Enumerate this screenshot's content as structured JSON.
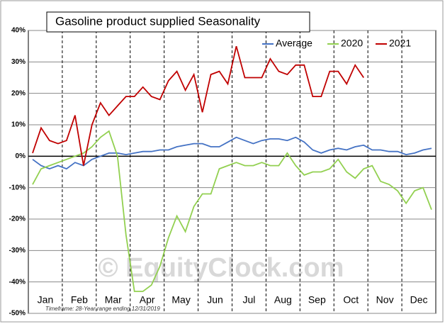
{
  "chart_data": {
    "type": "line",
    "title": "Gasoline product supplied Seasonality",
    "months": [
      "Jan",
      "Feb",
      "Mar",
      "Apr",
      "May",
      "Jun",
      "Jul",
      "Aug",
      "Sep",
      "Oct",
      "Nov",
      "Dec"
    ],
    "series": [
      {
        "name": "Average",
        "color": "#4472c4",
        "values": [
          -1,
          -3,
          -4,
          -3,
          -4,
          -2,
          -3,
          -1,
          0,
          1,
          1,
          0.5,
          1,
          1.5,
          1.5,
          2,
          2,
          3,
          3.5,
          4,
          4,
          3,
          3,
          4.5,
          6,
          5,
          4,
          5,
          5.5,
          5.5,
          5,
          6,
          4.5,
          2,
          1,
          2,
          2.5,
          2,
          3,
          3.5,
          2,
          2,
          1.5,
          1.5,
          0.5,
          1,
          2,
          2.5
        ]
      },
      {
        "name": "2020",
        "color": "#92d050",
        "values": [
          -9,
          -4,
          -3,
          -2,
          -1,
          0,
          1,
          3,
          6,
          8,
          0,
          -25,
          -43,
          -43,
          -41,
          -35,
          -26,
          -19,
          -24,
          -16,
          -12,
          -12,
          -4,
          -3,
          -2,
          -3,
          -3,
          -2,
          -3,
          -3,
          1,
          -3,
          -6,
          -5,
          -5,
          -4,
          -1,
          -5,
          -7,
          -4,
          -3,
          -8,
          -9,
          -11,
          -15,
          -11,
          -10,
          -17
        ]
      },
      {
        "name": "2021",
        "color": "#c00000",
        "values": [
          1,
          9,
          5,
          4,
          5,
          13,
          -3,
          10,
          17,
          13,
          16,
          19,
          19,
          22,
          19,
          18,
          24,
          27,
          21,
          26,
          14,
          26,
          27,
          23,
          35,
          25,
          25,
          25,
          31,
          27,
          26,
          29,
          29,
          19,
          19,
          27,
          27,
          23,
          29,
          25,
          null,
          null,
          null,
          null,
          null,
          null,
          null,
          null
        ]
      }
    ],
    "ylim": [
      -50,
      40
    ],
    "yticks": [
      {
        "value": -50,
        "label": "-50%"
      },
      {
        "value": -40,
        "label": "-40%"
      },
      {
        "value": -30,
        "label": "-30%"
      },
      {
        "value": -20,
        "label": "-20%"
      },
      {
        "value": -10,
        "label": "-10%"
      },
      {
        "value": 0,
        "label": "0%"
      },
      {
        "value": 10,
        "label": "10%"
      },
      {
        "value": 20,
        "label": "20%"
      },
      {
        "value": 30,
        "label": "30%"
      },
      {
        "value": 40,
        "label": "40%"
      }
    ],
    "grid": true,
    "watermark": "© EquityClock.com",
    "footnote": "Timeframe: 28-Year range ending 12/31/2019"
  }
}
